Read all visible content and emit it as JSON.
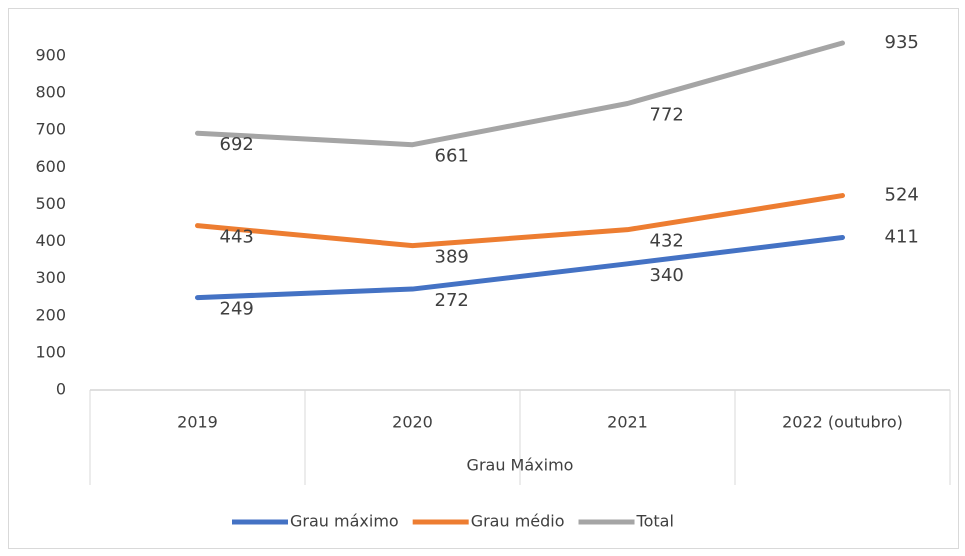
{
  "chart_data": {
    "type": "line",
    "categories": [
      "2019",
      "2020",
      "2021",
      "2022 (outubro)"
    ],
    "xlabel": "Grau Máximo",
    "series": [
      {
        "name": "Grau máximo",
        "color": "#4472c4",
        "values": [
          249,
          272,
          340,
          411
        ]
      },
      {
        "name": "Grau médio",
        "color": "#ed7d31",
        "values": [
          443,
          389,
          432,
          524
        ]
      },
      {
        "name": "Total",
        "color": "#a5a5a5",
        "values": [
          692,
          661,
          772,
          935
        ]
      }
    ],
    "ylim": [
      0,
      900
    ],
    "yticks": [
      0,
      100,
      200,
      300,
      400,
      500,
      600,
      700,
      800,
      900
    ],
    "grid": false,
    "legend": "bottom"
  }
}
